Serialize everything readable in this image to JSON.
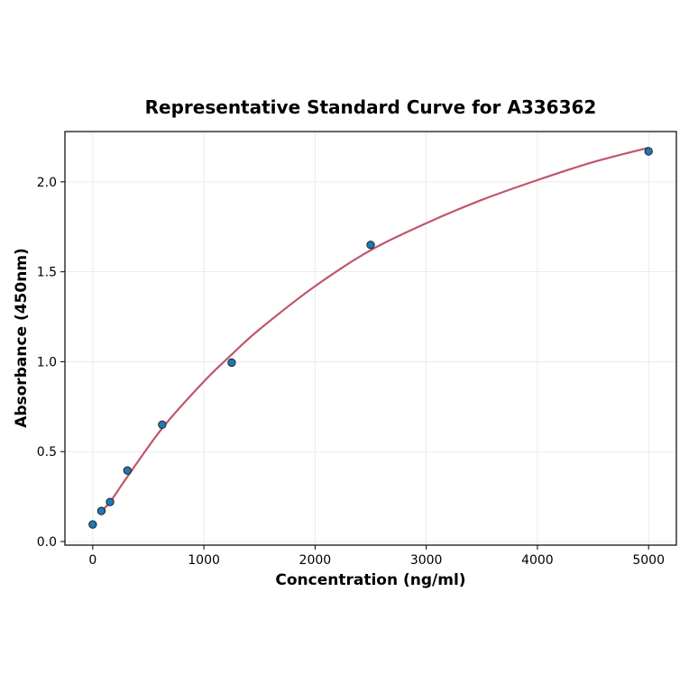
{
  "chart_data": {
    "type": "scatter",
    "title": "Representative Standard Curve for A336362",
    "xlabel": "Concentration (ng/ml)",
    "ylabel": "Absorbance (450nm)",
    "xlim": [
      -250,
      5250
    ],
    "ylim": [
      -0.02,
      2.28
    ],
    "xticks": [
      0,
      1000,
      2000,
      3000,
      4000,
      5000
    ],
    "yticks": [
      0.0,
      0.5,
      1.0,
      1.5,
      2.0
    ],
    "ytick_labels": [
      "0.0",
      "0.5",
      "1.0",
      "1.5",
      "2.0"
    ],
    "grid": true,
    "points": {
      "x": [
        0,
        78,
        156,
        312,
        625,
        1250,
        2500,
        5000
      ],
      "y": [
        0.095,
        0.17,
        0.22,
        0.395,
        0.65,
        0.995,
        1.65,
        2.17
      ],
      "color": "#1f77b4"
    },
    "fit_curve": {
      "x": [
        78,
        156,
        312,
        625,
        1000,
        1250,
        1500,
        2000,
        2500,
        3000,
        3500,
        4000,
        4500,
        5000
      ],
      "y": [
        0.17,
        0.22,
        0.36,
        0.63,
        0.89,
        1.04,
        1.18,
        1.42,
        1.62,
        1.77,
        1.9,
        2.01,
        2.11,
        2.19
      ],
      "color": "#c0566a"
    }
  }
}
